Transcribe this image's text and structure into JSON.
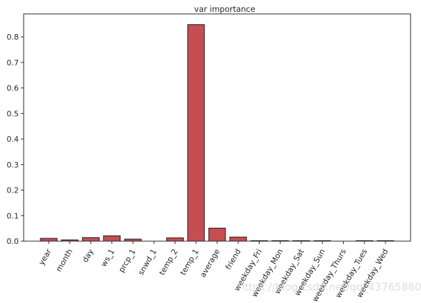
{
  "chart_data": {
    "type": "bar",
    "title": "var importance",
    "xlabel": "",
    "ylabel": "",
    "categories": [
      "year",
      "month",
      "day",
      "ws_1",
      "prcp_1",
      "snwd_1",
      "temp_2",
      "temp_1",
      "average",
      "friend",
      "weekday_Fri",
      "weekday_Mon",
      "weekday_Sat",
      "weekday_Sun",
      "weekday_Thurs",
      "weekday_Tues",
      "weekday_Wed"
    ],
    "values": [
      0.011,
      0.005,
      0.014,
      0.021,
      0.008,
      0.0,
      0.013,
      0.848,
      0.051,
      0.016,
      0.002,
      0.002,
      0.002,
      0.002,
      0.0,
      0.002,
      0.002
    ],
    "yticks": [
      "0.0",
      "0.1",
      "0.2",
      "0.3",
      "0.4",
      "0.5",
      "0.6",
      "0.7",
      "0.8"
    ],
    "ylim": [
      0,
      0.89
    ],
    "grid": false,
    "bar_color": "#c44e52",
    "edge_color": "#1a1a1a"
  },
  "watermark": "https://blog.csdn.net/qq_43765880"
}
